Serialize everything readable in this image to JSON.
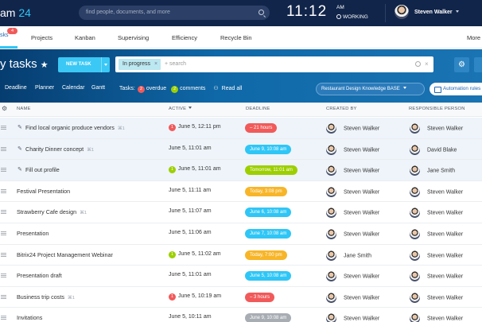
{
  "header": {
    "brand_left": "am",
    "brand_num": "24",
    "search_placeholder": "find people, documents, and more",
    "clock": "11:12",
    "ampm": "AM",
    "status": "WORKING",
    "user_name": "Steven Walker"
  },
  "nav": {
    "items": [
      {
        "label": "sks",
        "badge": "4",
        "active": true
      },
      {
        "label": "Projects"
      },
      {
        "label": "Kanban"
      },
      {
        "label": "Supervising"
      },
      {
        "label": "Efficiency"
      },
      {
        "label": "Recycle Bin"
      },
      {
        "label": "More"
      }
    ]
  },
  "toolbar": {
    "title": "y tasks",
    "new_task": "NEW TASK",
    "filter_chip": "In progress",
    "filter_close": "×",
    "search_placeholder": "+ search",
    "search_clear": "×"
  },
  "views": {
    "items": [
      "Deadline",
      "Planner",
      "Calendar",
      "Gantt"
    ],
    "tasks_label": "Tasks:",
    "overdue_count": "2",
    "overdue_label": "overdue",
    "comments_count": "2",
    "comments_label": "comments",
    "read_all": "Read all",
    "knowledge_base": "Restaurant Design Knowledge BASE",
    "automation": "Automation rules"
  },
  "columns": {
    "name": "NAME",
    "active": "ACTIVE",
    "deadline": "DEADLINE",
    "created_by": "CREATED BY",
    "responsible": "RESPONSIBLE PERSON"
  },
  "colors": {
    "red": "#f15a5a",
    "green": "#9dcf00",
    "blue": "#2fc6f6",
    "yellow": "#f7b528",
    "gray": "#a8adb4"
  },
  "rows": [
    {
      "pinned": true,
      "name": "Find local organic produce vendors",
      "count": "1",
      "badge": "1",
      "badge_color": "red",
      "active": "June 5, 12:11 pm",
      "deadline": "– 21 hours",
      "deadline_color": "red",
      "created": "Steven Walker",
      "responsible": "Steven Walker"
    },
    {
      "pinned": true,
      "name": "Charity Dinner concept",
      "count": "1",
      "badge": "",
      "active": "June 5, 11:01 am",
      "deadline": "June 9, 10:08 am",
      "deadline_color": "blue",
      "created": "Steven Walker",
      "responsible": "David Blake"
    },
    {
      "pinned": true,
      "name": "Fill out profile",
      "count": "",
      "badge": "1",
      "badge_color": "green",
      "active": "June 5, 11:01 am",
      "deadline": "Tomorrow, 11:01 am",
      "deadline_color": "green",
      "created": "Steven Walker",
      "responsible": "Jane Smith"
    },
    {
      "pinned": false,
      "name": "Festival Presentation",
      "count": "",
      "badge": "",
      "active": "June 5, 11:11 am",
      "deadline": "Today, 3:08 pm",
      "deadline_color": "yellow",
      "created": "Steven Walker",
      "responsible": "Steven Walker"
    },
    {
      "pinned": false,
      "name": "Strawberry Cafe design",
      "count": "1",
      "badge": "",
      "active": "June 5, 11:07 am",
      "deadline": "June 6, 10:08 am",
      "deadline_color": "blue",
      "created": "Steven Walker",
      "responsible": "Steven Walker"
    },
    {
      "pinned": false,
      "name": "Presentation",
      "count": "",
      "badge": "",
      "active": "June 5, 11:06 am",
      "deadline": "June 7, 10:08 am",
      "deadline_color": "blue",
      "created": "Steven Walker",
      "responsible": "Steven Walker"
    },
    {
      "pinned": false,
      "name": "Bitrix24 Project Management Webinar",
      "count": "",
      "badge": "1",
      "badge_color": "green",
      "active": "June 5, 11:02 am",
      "deadline": "Today, 7:00 pm",
      "deadline_color": "yellow",
      "created": "Jane Smith",
      "responsible": "Steven Walker"
    },
    {
      "pinned": false,
      "name": "Presentation draft",
      "count": "",
      "badge": "",
      "active": "June 5, 11:01 am",
      "deadline": "June 5, 10:08 am",
      "deadline_color": "blue",
      "created": "Steven Walker",
      "responsible": "Steven Walker"
    },
    {
      "pinned": false,
      "name": "Business trip costs",
      "count": "1",
      "badge": "1",
      "badge_color": "red",
      "active": "June 5, 10:19 am",
      "deadline": "– 3 hours",
      "deadline_color": "red",
      "created": "Steven Walker",
      "responsible": "Steven Walker"
    },
    {
      "pinned": false,
      "name": "Invitations",
      "count": "",
      "badge": "",
      "active": "June 5, 10:11 am",
      "deadline": "June 9, 10:08 am",
      "deadline_color": "gray",
      "created": "Steven Walker",
      "responsible": "Steven Walker"
    }
  ]
}
